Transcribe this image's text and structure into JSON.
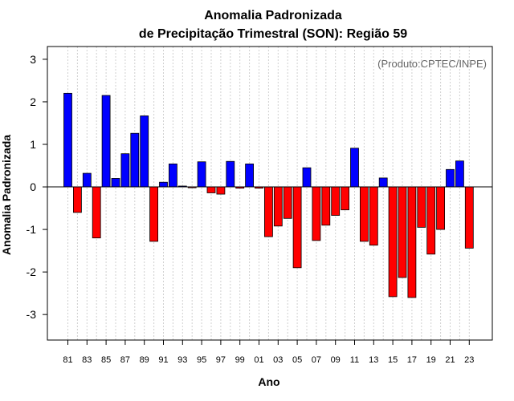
{
  "chart_data": {
    "type": "bar",
    "title": "Anomalia Padronizada",
    "subtitle": "de Precipitação Trimestral (SON): Região 59",
    "xlabel": "Ano",
    "ylabel": "Anomalia Padronizada",
    "credit": "(Produto:CPTEC/INPE)",
    "ylim": [
      -3.6,
      3.3
    ],
    "yticks": [
      "-3",
      "-2",
      "-1",
      "0",
      "1",
      "2",
      "3"
    ],
    "ytick_values": [
      -3,
      -2,
      -1,
      0,
      1,
      2,
      3
    ],
    "grid": "vertical dotted",
    "positive_color": "#0000ff",
    "negative_color": "#ff0000",
    "categories": [
      "81",
      "82",
      "83",
      "84",
      "85",
      "86",
      "87",
      "88",
      "89",
      "90",
      "91",
      "92",
      "93",
      "94",
      "95",
      "96",
      "97",
      "98",
      "99",
      "00",
      "01",
      "02",
      "03",
      "04",
      "05",
      "06",
      "07",
      "08",
      "09",
      "10",
      "11",
      "12",
      "13",
      "14",
      "15",
      "16",
      "17",
      "18",
      "19",
      "20",
      "21",
      "22",
      "23"
    ],
    "xtick_labels": [
      "81",
      "83",
      "85",
      "87",
      "89",
      "91",
      "93",
      "95",
      "97",
      "99",
      "01",
      "03",
      "05",
      "07",
      "09",
      "11",
      "13",
      "15",
      "17",
      "19",
      "21",
      "23"
    ],
    "values": [
      2.2,
      -0.6,
      0.32,
      -1.2,
      2.15,
      0.2,
      0.78,
      1.26,
      1.67,
      -1.28,
      0.11,
      0.54,
      0.02,
      -0.02,
      0.59,
      -0.14,
      -0.17,
      0.6,
      -0.03,
      0.54,
      -0.03,
      -1.17,
      -0.92,
      -0.74,
      -1.9,
      0.45,
      -1.26,
      -0.9,
      -0.67,
      -0.54,
      0.91,
      -1.28,
      -1.37,
      0.21,
      -2.58,
      -2.13,
      -2.6,
      -0.95,
      -1.58,
      -1.0,
      0.41,
      0.61,
      -1.44
    ]
  }
}
